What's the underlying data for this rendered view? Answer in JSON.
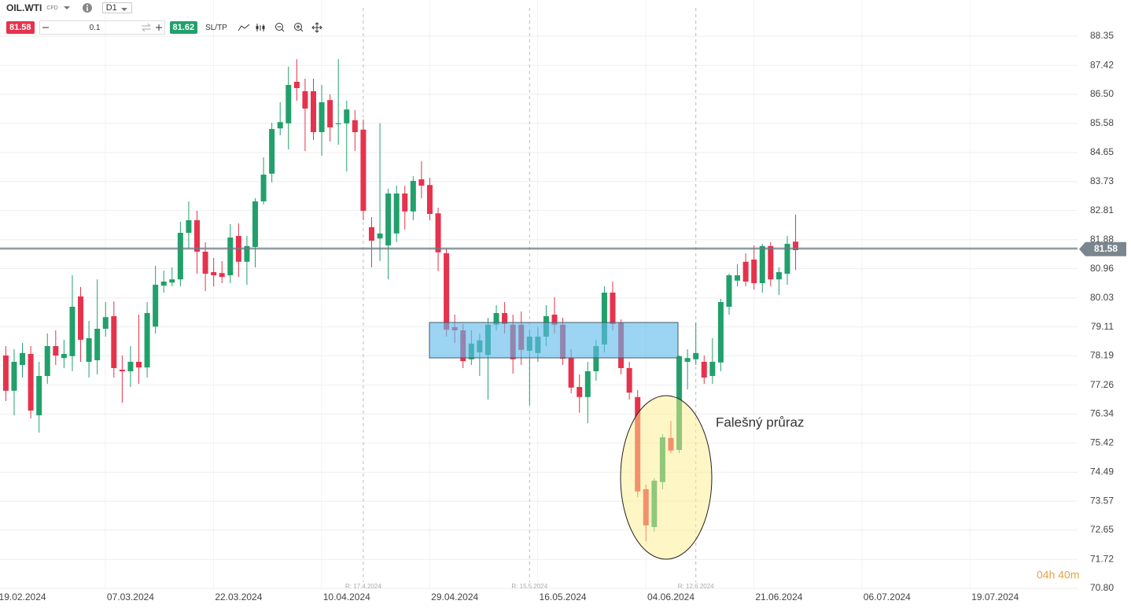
{
  "toolbar": {
    "symbol": "OIL.WTI",
    "kind": "CFD",
    "timeframe": "D1",
    "quantity": "0.1",
    "sltp": "SL/TP"
  },
  "countdown": "04h 40m",
  "chart_data": {
    "type": "candlestick",
    "categories": [
      null,
      null,
      "19.02.2024",
      null,
      null,
      null,
      null,
      null,
      null,
      null,
      null,
      null,
      null,
      null,
      null,
      "07.03.2024",
      null,
      null,
      null,
      null,
      null,
      null,
      null,
      null,
      null,
      null,
      null,
      null,
      "22.03.2024",
      null,
      null,
      null,
      null,
      null,
      null,
      null,
      null,
      null,
      null,
      null,
      null,
      "10.04.2024",
      null,
      null,
      null,
      null,
      null,
      null,
      null,
      null,
      null,
      null,
      null,
      null,
      "29.04.2024",
      null,
      null,
      null,
      null,
      null,
      null,
      null,
      null,
      null,
      null,
      null,
      null,
      "16.05.2024",
      null,
      null,
      null,
      null,
      null,
      null,
      null,
      null,
      null,
      null,
      null,
      null,
      "04.06.2024",
      null,
      null,
      null,
      null,
      null,
      null,
      null,
      null,
      null,
      null,
      null,
      null,
      "21.06.2024",
      null,
      null,
      null,
      null,
      null,
      null,
      null,
      null,
      null,
      null,
      null,
      null,
      "06.07.2024",
      null,
      null,
      null,
      null,
      null,
      null,
      null,
      null,
      null,
      null,
      null,
      null,
      "19.07.2024",
      null,
      null,
      null,
      null,
      null,
      null,
      null,
      null,
      null
    ],
    "open": [
      78.2,
      77.08,
      77.9,
      78.25,
      76.3,
      77.55,
      78.5,
      78.12,
      78.18,
      80.08,
      78.0,
      78.05,
      79.05,
      79.45,
      77.75,
      77.7,
      78.0,
      77.82,
      79.12,
      80.42,
      80.52,
      80.62,
      82.1,
      82.5,
      81.5,
      80.85,
      80.82,
      80.75,
      82.0,
      81.18,
      81.65,
      83.1,
      83.98,
      85.42,
      85.58,
      86.9,
      86.6,
      86.6,
      85.3,
      86.32,
      85.55,
      85.58,
      85.68,
      85.38,
      82.28,
      81.92,
      81.7,
      82.08,
      83.35,
      82.78,
      83.8,
      83.62,
      82.72,
      81.45,
      79.1,
      79.0,
      78.08,
      78.3,
      78.22,
      79.18,
      79.55,
      79.18,
      79.18,
      78.35,
      78.28,
      78.8,
      79.5,
      79.18,
      78.12,
      77.2,
      76.88,
      77.7,
      78.55,
      80.2,
      79.25,
      77.8,
      76.88,
      73.95,
      72.75,
      74.18,
      75.58,
      75.2,
      78.0,
      78.08,
      78.0,
      77.55,
      77.98,
      79.75,
      80.58,
      81.18,
      81.25,
      80.5,
      81.68,
      80.62,
      80.8,
      81.82,
      null,
      null,
      null,
      null,
      null,
      null,
      null,
      null,
      null,
      null,
      null,
      null,
      null,
      null,
      null,
      null,
      null,
      null,
      null,
      null,
      null,
      null,
      null,
      null,
      null,
      null,
      null,
      null,
      null,
      null,
      null,
      null,
      null
    ],
    "high": [
      78.5,
      78.4,
      78.6,
      78.5,
      78.0,
      78.9,
      79.0,
      78.7,
      80.75,
      80.38,
      79.3,
      80.62,
      79.9,
      79.92,
      78.2,
      78.5,
      79.5,
      79.9,
      81.05,
      80.9,
      81.0,
      82.45,
      83.1,
      82.8,
      81.8,
      81.3,
      81.2,
      82.38,
      82.4,
      82.0,
      83.2,
      84.5,
      85.6,
      86.25,
      87.38,
      87.62,
      87.0,
      87.0,
      86.8,
      86.5,
      87.62,
      86.3,
      86.0,
      85.7,
      82.6,
      85.58,
      83.5,
      83.6,
      83.6,
      83.9,
      84.38,
      83.85,
      82.9,
      81.6,
      79.5,
      79.2,
      79.0,
      78.9,
      79.4,
      79.8,
      79.9,
      79.5,
      79.6,
      79.0,
      79.1,
      79.8,
      80.05,
      79.4,
      78.4,
      77.6,
      78.0,
      78.7,
      80.4,
      80.55,
      79.35,
      78.0,
      77.1,
      74.1,
      74.3,
      75.7,
      76.12,
      78.2,
      78.4,
      79.25,
      78.2,
      78.75,
      80.0,
      80.8,
      81.1,
      81.45,
      81.7,
      81.75,
      81.8,
      81.0,
      82.0,
      82.68,
      null,
      null,
      null,
      null,
      null,
      null,
      null,
      null,
      null,
      null,
      null,
      null,
      null,
      null,
      null,
      null,
      null,
      null,
      null,
      null,
      null,
      null,
      null,
      null,
      null,
      null,
      null,
      null,
      null,
      null,
      null,
      null,
      null
    ],
    "low": [
      76.75,
      76.3,
      77.5,
      76.2,
      75.75,
      77.3,
      77.9,
      77.8,
      77.7,
      78.0,
      77.5,
      77.6,
      78.8,
      77.5,
      76.7,
      77.2,
      77.3,
      77.5,
      78.9,
      80.2,
      80.4,
      80.4,
      81.6,
      80.8,
      80.25,
      80.4,
      80.5,
      80.5,
      80.7,
      80.45,
      81.0,
      83.0,
      83.7,
      85.2,
      84.75,
      86.3,
      84.7,
      85.05,
      84.55,
      85.0,
      84.9,
      84.05,
      84.7,
      82.5,
      81.0,
      81.2,
      80.62,
      81.8,
      82.2,
      82.5,
      83.2,
      82.5,
      80.88,
      78.8,
      78.6,
      77.8,
      77.9,
      77.55,
      76.8,
      79.0,
      78.9,
      77.62,
      77.9,
      76.62,
      78.0,
      78.5,
      78.9,
      77.9,
      77.0,
      76.38,
      76.05,
      77.4,
      78.3,
      79.0,
      77.6,
      76.8,
      73.7,
      72.3,
      72.6,
      73.95,
      75.1,
      75.1,
      77.12,
      77.9,
      77.3,
      77.3,
      77.7,
      79.5,
      80.4,
      80.4,
      80.3,
      80.2,
      80.4,
      80.12,
      80.45,
      80.92,
      null,
      null,
      null,
      null,
      null,
      null,
      null,
      null,
      null,
      null,
      null,
      null,
      null,
      null,
      null,
      null,
      null,
      null,
      null,
      null,
      null,
      null,
      null,
      null,
      null,
      null,
      null,
      null,
      null,
      null,
      null,
      null,
      null
    ],
    "close": [
      77.08,
      78.0,
      78.28,
      76.45,
      77.55,
      78.5,
      78.2,
      78.25,
      79.75,
      78.7,
      78.75,
      79.05,
      79.42,
      77.8,
      77.7,
      78.0,
      77.82,
      79.55,
      80.45,
      80.55,
      80.62,
      82.1,
      82.5,
      81.5,
      80.8,
      80.75,
      80.7,
      81.95,
      81.18,
      81.68,
      83.1,
      83.95,
      85.4,
      85.62,
      86.8,
      86.7,
      86.05,
      85.3,
      86.25,
      85.45,
      85.58,
      86.02,
      85.3,
      82.8,
      81.85,
      82.08,
      83.35,
      83.35,
      82.78,
      83.75,
      83.6,
      82.7,
      81.48,
      79.02,
      79.0,
      78.02,
      78.58,
      78.68,
      79.18,
      79.55,
      79.2,
      78.08,
      78.38,
      78.8,
      78.8,
      79.45,
      79.18,
      78.1,
      77.18,
      76.88,
      77.7,
      78.5,
      80.2,
      79.2,
      77.8,
      77.02,
      73.88,
      72.8,
      74.22,
      75.6,
      75.18,
      78.18,
      78.12,
      78.28,
      77.5,
      78.0,
      79.9,
      80.75,
      80.75,
      80.55,
      80.5,
      81.68,
      80.62,
      80.85,
      81.75,
      81.55,
      null,
      null,
      null,
      null,
      null,
      null,
      null,
      null,
      null,
      null,
      null,
      null,
      null,
      null,
      null,
      null,
      null,
      null,
      null,
      null,
      null,
      null,
      null,
      null,
      null,
      null,
      null,
      null,
      null,
      null,
      null,
      null,
      null
    ],
    "up_color": "#22a06b",
    "down_color": "#e5334d",
    "ylim": [
      70.75,
      89.5
    ],
    "yticks": [
      88.35,
      87.42,
      {
        "value": 86.5,
        "label": "86.50"
      },
      85.58,
      84.65,
      83.73,
      82.81,
      81.88,
      80.96,
      80.03,
      79.11,
      78.19,
      77.26,
      76.34,
      75.42,
      74.49,
      73.57,
      72.65,
      71.72,
      {
        "value": 70.8,
        "label": "70.80"
      }
    ],
    "grid": true,
    "last_price": 81.58,
    "ask_price": 81.62,
    "markers": [
      {
        "label": "R: 17.4.2024"
      },
      {
        "label": "R: 15.5.2024"
      },
      {
        "label": "R: 12.6.2024"
      }
    ],
    "annotation": "Falešný průraz"
  }
}
